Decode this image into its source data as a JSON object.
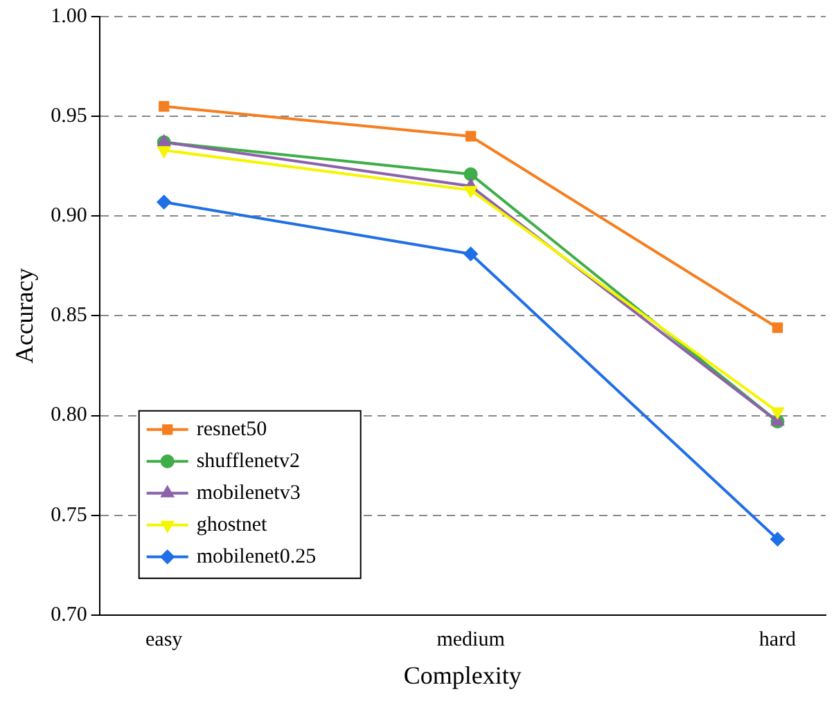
{
  "chart_data": {
    "type": "line",
    "xlabel": "Complexity",
    "ylabel": "Accuracy",
    "categories": [
      "easy",
      "medium",
      "hard"
    ],
    "series": [
      {
        "name": "resnet50",
        "color": "#f57f20",
        "marker": "square",
        "values": [
          0.955,
          0.94,
          0.844
        ]
      },
      {
        "name": "shufflenetv2",
        "color": "#3fae49",
        "marker": "circle",
        "values": [
          0.937,
          0.921,
          0.797
        ]
      },
      {
        "name": "mobilenetv3",
        "color": "#8c62aa",
        "marker": "triangle",
        "values": [
          0.937,
          0.915,
          0.797
        ]
      },
      {
        "name": "ghostnet",
        "color": "#f5f500",
        "marker": "triangle-down",
        "values": [
          0.933,
          0.913,
          0.802
        ]
      },
      {
        "name": "mobilenet0.25",
        "color": "#1f6fe6",
        "marker": "diamond",
        "values": [
          0.907,
          0.881,
          0.738
        ]
      }
    ],
    "ylim": [
      0.7,
      1.0
    ],
    "yticks": [
      {
        "value": 0.7,
        "label": "0.70"
      },
      {
        "value": 0.75,
        "label": "0.75"
      },
      {
        "value": 0.8,
        "label": "0.80"
      },
      {
        "value": 0.85,
        "label": "0.85"
      },
      {
        "value": 0.9,
        "label": "0.90"
      },
      {
        "value": 0.95,
        "label": "0.95"
      },
      {
        "value": 1.0,
        "label": "1.00"
      }
    ],
    "grid": "y",
    "legend": "bottom left",
    "line_style": "solid"
  }
}
